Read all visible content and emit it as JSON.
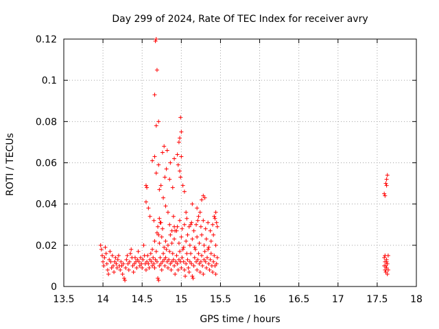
{
  "chart_data": {
    "type": "scatter",
    "title": "Day 299 of 2024, Rate Of TEC Index for receiver avry",
    "xlabel": "GPS time / hours",
    "ylabel": "ROTI / TECUs",
    "xlim": [
      13.5,
      18
    ],
    "ylim": [
      0,
      0.12
    ],
    "x_ticks": [
      13.5,
      14,
      14.5,
      15,
      15.5,
      16,
      16.5,
      17,
      17.5,
      18
    ],
    "y_ticks": [
      0,
      0.02,
      0.04,
      0.06,
      0.08,
      0.1,
      0.12
    ],
    "x_tick_labels": [
      "13.5",
      "14",
      "14.5",
      "15",
      "15.5",
      "16",
      "16.5",
      "17",
      "17.5",
      "18"
    ],
    "y_tick_labels": [
      "0",
      "0.02",
      "0.04",
      "0.06",
      "0.08",
      "0.1",
      "0.12"
    ],
    "grid": true,
    "marker": "+",
    "color": "#ff0000",
    "series": [
      {
        "name": "ROTI",
        "points": [
          [
            13.97,
            0.02
          ],
          [
            13.98,
            0.018
          ],
          [
            13.99,
            0.015
          ],
          [
            14.0,
            0.012
          ],
          [
            14.01,
            0.01
          ],
          [
            14.02,
            0.014
          ],
          [
            14.03,
            0.019
          ],
          [
            14.04,
            0.016
          ],
          [
            14.05,
            0.011
          ],
          [
            14.06,
            0.008
          ],
          [
            14.07,
            0.006
          ],
          [
            14.08,
            0.013
          ],
          [
            14.09,
            0.017
          ],
          [
            14.1,
            0.012
          ],
          [
            14.11,
            0.009
          ],
          [
            14.12,
            0.015
          ],
          [
            14.13,
            0.01
          ],
          [
            14.14,
            0.007
          ],
          [
            14.15,
            0.012
          ],
          [
            14.16,
            0.014
          ],
          [
            14.17,
            0.011
          ],
          [
            14.18,
            0.009
          ],
          [
            14.19,
            0.013
          ],
          [
            14.2,
            0.015
          ],
          [
            14.21,
            0.01
          ],
          [
            14.22,
            0.008
          ],
          [
            14.23,
            0.012
          ],
          [
            14.24,
            0.01
          ],
          [
            14.25,
            0.006
          ],
          [
            14.26,
            0.011
          ],
          [
            14.27,
            0.004
          ],
          [
            14.28,
            0.003
          ],
          [
            14.29,
            0.009
          ],
          [
            14.3,
            0.013
          ],
          [
            14.31,
            0.015
          ],
          [
            14.32,
            0.011
          ],
          [
            14.33,
            0.008
          ],
          [
            14.34,
            0.012
          ],
          [
            14.35,
            0.016
          ],
          [
            14.36,
            0.018
          ],
          [
            14.37,
            0.014
          ],
          [
            14.38,
            0.01
          ],
          [
            14.39,
            0.007
          ],
          [
            14.4,
            0.011
          ],
          [
            14.41,
            0.014
          ],
          [
            14.42,
            0.012
          ],
          [
            14.43,
            0.009
          ],
          [
            14.44,
            0.013
          ],
          [
            14.45,
            0.017
          ],
          [
            14.46,
            0.012
          ],
          [
            14.47,
            0.01
          ],
          [
            14.48,
            0.014
          ],
          [
            14.49,
            0.011
          ],
          [
            14.5,
            0.009
          ],
          [
            14.51,
            0.013
          ],
          [
            14.52,
            0.02
          ],
          [
            14.53,
            0.015
          ],
          [
            14.54,
            0.011
          ],
          [
            14.55,
            0.008
          ],
          [
            14.56,
            0.012
          ],
          [
            14.57,
            0.015
          ],
          [
            14.58,
            0.011
          ],
          [
            14.59,
            0.009
          ],
          [
            14.6,
            0.013
          ],
          [
            14.61,
            0.016
          ],
          [
            14.62,
            0.012
          ],
          [
            14.63,
            0.01
          ],
          [
            14.64,
            0.014
          ],
          [
            14.65,
            0.011
          ],
          [
            14.66,
            0.009
          ],
          [
            14.67,
            0.013
          ],
          [
            14.68,
            0.017
          ],
          [
            14.69,
            0.012
          ],
          [
            14.7,
            0.004
          ],
          [
            14.71,
            0.003
          ],
          [
            14.72,
            0.01
          ],
          [
            14.73,
            0.014
          ],
          [
            14.74,
            0.011
          ],
          [
            14.75,
            0.008
          ],
          [
            14.76,
            0.012
          ],
          [
            14.77,
            0.016
          ],
          [
            14.78,
            0.013
          ],
          [
            14.79,
            0.01
          ],
          [
            14.8,
            0.014
          ],
          [
            14.81,
            0.018
          ],
          [
            14.82,
            0.012
          ],
          [
            14.83,
            0.009
          ],
          [
            14.84,
            0.013
          ],
          [
            14.85,
            0.017
          ],
          [
            14.86,
            0.011
          ],
          [
            14.87,
            0.008
          ],
          [
            14.88,
            0.012
          ],
          [
            14.89,
            0.016
          ],
          [
            14.9,
            0.013
          ],
          [
            14.91,
            0.01
          ],
          [
            14.92,
            0.006
          ],
          [
            14.93,
            0.012
          ],
          [
            14.94,
            0.015
          ],
          [
            14.95,
            0.011
          ],
          [
            14.96,
            0.008
          ],
          [
            14.97,
            0.013
          ],
          [
            14.98,
            0.017
          ],
          [
            14.99,
            0.012
          ],
          [
            15.0,
            0.009
          ],
          [
            15.01,
            0.014
          ],
          [
            15.02,
            0.018
          ],
          [
            15.03,
            0.012
          ],
          [
            15.04,
            0.008
          ],
          [
            15.05,
            0.005
          ],
          [
            15.06,
            0.011
          ],
          [
            15.07,
            0.016
          ],
          [
            15.08,
            0.013
          ],
          [
            15.09,
            0.009
          ],
          [
            15.1,
            0.007
          ],
          [
            15.11,
            0.012
          ],
          [
            15.12,
            0.016
          ],
          [
            15.13,
            0.011
          ],
          [
            15.14,
            0.005
          ],
          [
            15.15,
            0.004
          ],
          [
            15.16,
            0.01
          ],
          [
            15.17,
            0.014
          ],
          [
            15.18,
            0.018
          ],
          [
            15.19,
            0.012
          ],
          [
            15.2,
            0.008
          ],
          [
            15.21,
            0.013
          ],
          [
            15.22,
            0.016
          ],
          [
            15.23,
            0.011
          ],
          [
            15.24,
            0.007
          ],
          [
            15.25,
            0.012
          ],
          [
            15.26,
            0.015
          ],
          [
            15.27,
            0.01
          ],
          [
            15.28,
            0.006
          ],
          [
            15.29,
            0.013
          ],
          [
            15.3,
            0.017
          ],
          [
            15.31,
            0.012
          ],
          [
            15.32,
            0.009
          ],
          [
            15.33,
            0.014
          ],
          [
            15.34,
            0.018
          ],
          [
            15.35,
            0.011
          ],
          [
            15.36,
            0.008
          ],
          [
            15.37,
            0.013
          ],
          [
            15.38,
            0.016
          ],
          [
            15.39,
            0.01
          ],
          [
            15.4,
            0.007
          ],
          [
            15.41,
            0.012
          ],
          [
            15.42,
            0.015
          ],
          [
            15.43,
            0.01
          ],
          [
            15.44,
            0.006
          ],
          [
            15.45,
            0.011
          ],
          [
            15.46,
            0.014
          ],
          [
            14.63,
            0.018
          ],
          [
            14.66,
            0.022
          ],
          [
            14.69,
            0.026
          ],
          [
            14.72,
            0.021
          ],
          [
            14.75,
            0.024
          ],
          [
            14.78,
            0.019
          ],
          [
            14.8,
            0.022
          ],
          [
            14.83,
            0.02
          ],
          [
            14.86,
            0.025
          ],
          [
            14.88,
            0.021
          ],
          [
            14.91,
            0.023
          ],
          [
            14.94,
            0.027
          ],
          [
            14.97,
            0.021
          ],
          [
            15.0,
            0.024
          ],
          [
            15.03,
            0.019
          ],
          [
            15.06,
            0.022
          ],
          [
            15.08,
            0.025
          ],
          [
            15.11,
            0.02
          ],
          [
            15.14,
            0.023
          ],
          [
            15.17,
            0.019
          ],
          [
            15.2,
            0.024
          ],
          [
            15.23,
            0.021
          ],
          [
            15.26,
            0.025
          ],
          [
            15.29,
            0.02
          ],
          [
            15.32,
            0.023
          ],
          [
            15.35,
            0.019
          ],
          [
            15.38,
            0.022
          ],
          [
            15.41,
            0.025
          ],
          [
            15.44,
            0.02
          ],
          [
            14.95,
            0.029
          ],
          [
            14.98,
            0.032
          ],
          [
            15.01,
            0.028
          ],
          [
            15.04,
            0.03
          ],
          [
            15.07,
            0.033
          ],
          [
            15.1,
            0.029
          ],
          [
            15.13,
            0.031
          ],
          [
            15.16,
            0.027
          ],
          [
            15.19,
            0.03
          ],
          [
            15.22,
            0.034
          ],
          [
            15.25,
            0.029
          ],
          [
            15.28,
            0.032
          ],
          [
            15.31,
            0.028
          ],
          [
            15.34,
            0.031
          ],
          [
            15.37,
            0.027
          ],
          [
            15.4,
            0.03
          ],
          [
            15.43,
            0.033
          ],
          [
            15.46,
            0.029
          ],
          [
            15.44,
            0.036
          ],
          [
            15.42,
            0.034
          ],
          [
            15.45,
            0.031
          ],
          [
            14.72,
            0.033
          ],
          [
            14.74,
            0.031
          ],
          [
            14.76,
            0.028
          ],
          [
            14.71,
            0.025
          ],
          [
            14.85,
            0.03
          ],
          [
            14.88,
            0.027
          ],
          [
            14.91,
            0.029
          ],
          [
            15.14,
            0.04
          ],
          [
            15.2,
            0.038
          ],
          [
            15.26,
            0.042
          ],
          [
            15.28,
            0.044
          ],
          [
            15.3,
            0.043
          ],
          [
            15.24,
            0.036
          ],
          [
            15.21,
            0.032
          ],
          [
            14.72,
            0.047
          ],
          [
            14.77,
            0.043
          ],
          [
            14.74,
            0.049
          ],
          [
            14.79,
            0.053
          ],
          [
            14.85,
            0.052
          ],
          [
            14.89,
            0.048
          ],
          [
            14.68,
            0.055
          ],
          [
            14.71,
            0.059
          ],
          [
            14.81,
            0.057
          ],
          [
            14.86,
            0.06
          ],
          [
            14.63,
            0.061
          ],
          [
            14.66,
            0.063
          ],
          [
            14.76,
            0.065
          ],
          [
            14.91,
            0.062
          ],
          [
            14.96,
            0.059
          ],
          [
            14.98,
            0.056
          ],
          [
            14.99,
            0.053
          ],
          [
            15.02,
            0.049
          ],
          [
            15.04,
            0.046
          ],
          [
            14.82,
            0.066
          ],
          [
            14.78,
            0.068
          ],
          [
            14.95,
            0.064
          ],
          [
            15.0,
            0.063
          ],
          [
            14.97,
            0.07
          ],
          [
            14.98,
            0.072
          ],
          [
            15.0,
            0.075
          ],
          [
            14.99,
            0.082
          ],
          [
            14.68,
            0.078
          ],
          [
            14.71,
            0.08
          ],
          [
            14.66,
            0.093
          ],
          [
            14.69,
            0.105
          ],
          [
            14.67,
            0.119
          ],
          [
            14.68,
            0.12
          ],
          [
            14.56,
            0.048
          ],
          [
            14.55,
            0.041
          ],
          [
            14.58,
            0.038
          ],
          [
            14.6,
            0.034
          ],
          [
            14.65,
            0.032
          ],
          [
            14.7,
            0.029
          ],
          [
            14.73,
            0.031
          ],
          [
            14.55,
            0.049
          ],
          [
            14.8,
            0.039
          ],
          [
            14.83,
            0.036
          ],
          [
            14.9,
            0.034
          ],
          [
            14.92,
            0.027
          ],
          [
            15.06,
            0.036
          ],
          [
            15.12,
            0.03
          ],
          [
            17.59,
            0.045
          ],
          [
            17.6,
            0.044
          ],
          [
            17.61,
            0.05
          ],
          [
            17.62,
            0.052
          ],
          [
            17.63,
            0.054
          ],
          [
            17.62,
            0.049
          ],
          [
            17.59,
            0.014
          ],
          [
            17.6,
            0.012
          ],
          [
            17.61,
            0.01
          ],
          [
            17.62,
            0.013
          ],
          [
            17.63,
            0.011
          ],
          [
            17.64,
            0.015
          ],
          [
            17.6,
            0.008
          ],
          [
            17.61,
            0.007
          ],
          [
            17.62,
            0.009
          ],
          [
            17.63,
            0.006
          ],
          [
            17.59,
            0.01
          ],
          [
            17.64,
            0.008
          ],
          [
            17.6,
            0.015
          ],
          [
            17.62,
            0.012
          ]
        ]
      }
    ]
  }
}
